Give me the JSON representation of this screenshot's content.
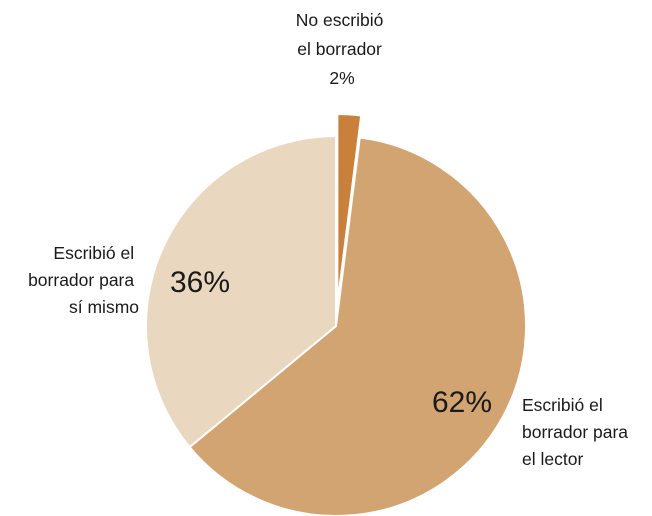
{
  "chart_data": {
    "type": "pie",
    "title": "",
    "slices": [
      {
        "label_lines": [
          "No escribió",
          "el borrador"
        ],
        "value": 2,
        "value_label": "2%",
        "color": "#c8803a",
        "exploded": true
      },
      {
        "label_lines": [
          "Escribió el",
          "borrador para",
          "el lector"
        ],
        "value": 62,
        "value_label": "62%",
        "color": "#d2a472"
      },
      {
        "label_lines": [
          "Escribió el",
          "borrador para",
          "sí mismo"
        ],
        "value": 36,
        "value_label": "36%",
        "color": "#ead7bf"
      }
    ]
  }
}
